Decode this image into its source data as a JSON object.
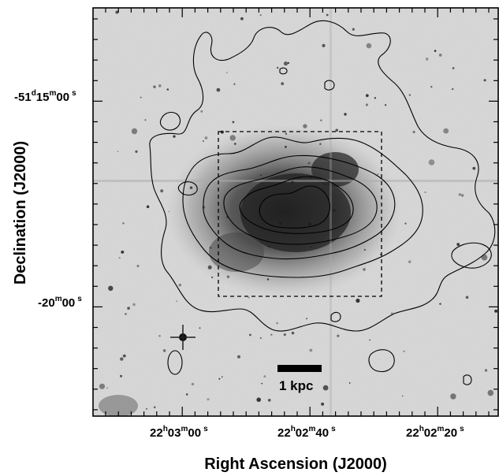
{
  "axes": {
    "xlabel": "Right Ascension (J2000)",
    "ylabel": "Declination (J2000)"
  },
  "x_ticks": [
    {
      "h": "22",
      "m": "03",
      "s": "00"
    },
    {
      "h": "22",
      "m": "02",
      "s": "40"
    },
    {
      "h": "22",
      "m": "02",
      "s": "20"
    }
  ],
  "y_ticks": [
    {
      "d": "-51",
      "m": "15",
      "s": "00"
    },
    {
      "m": "20",
      "s": "00"
    }
  ],
  "unit_marks": {
    "h": "h",
    "d": "d",
    "m": "m",
    "s": "s"
  },
  "scale_bar": {
    "label": "1 kpc"
  },
  "colors": {
    "background_sky": "#d9d9d9",
    "galaxy_core": "#2a2a2a",
    "contour": "#000000"
  }
}
